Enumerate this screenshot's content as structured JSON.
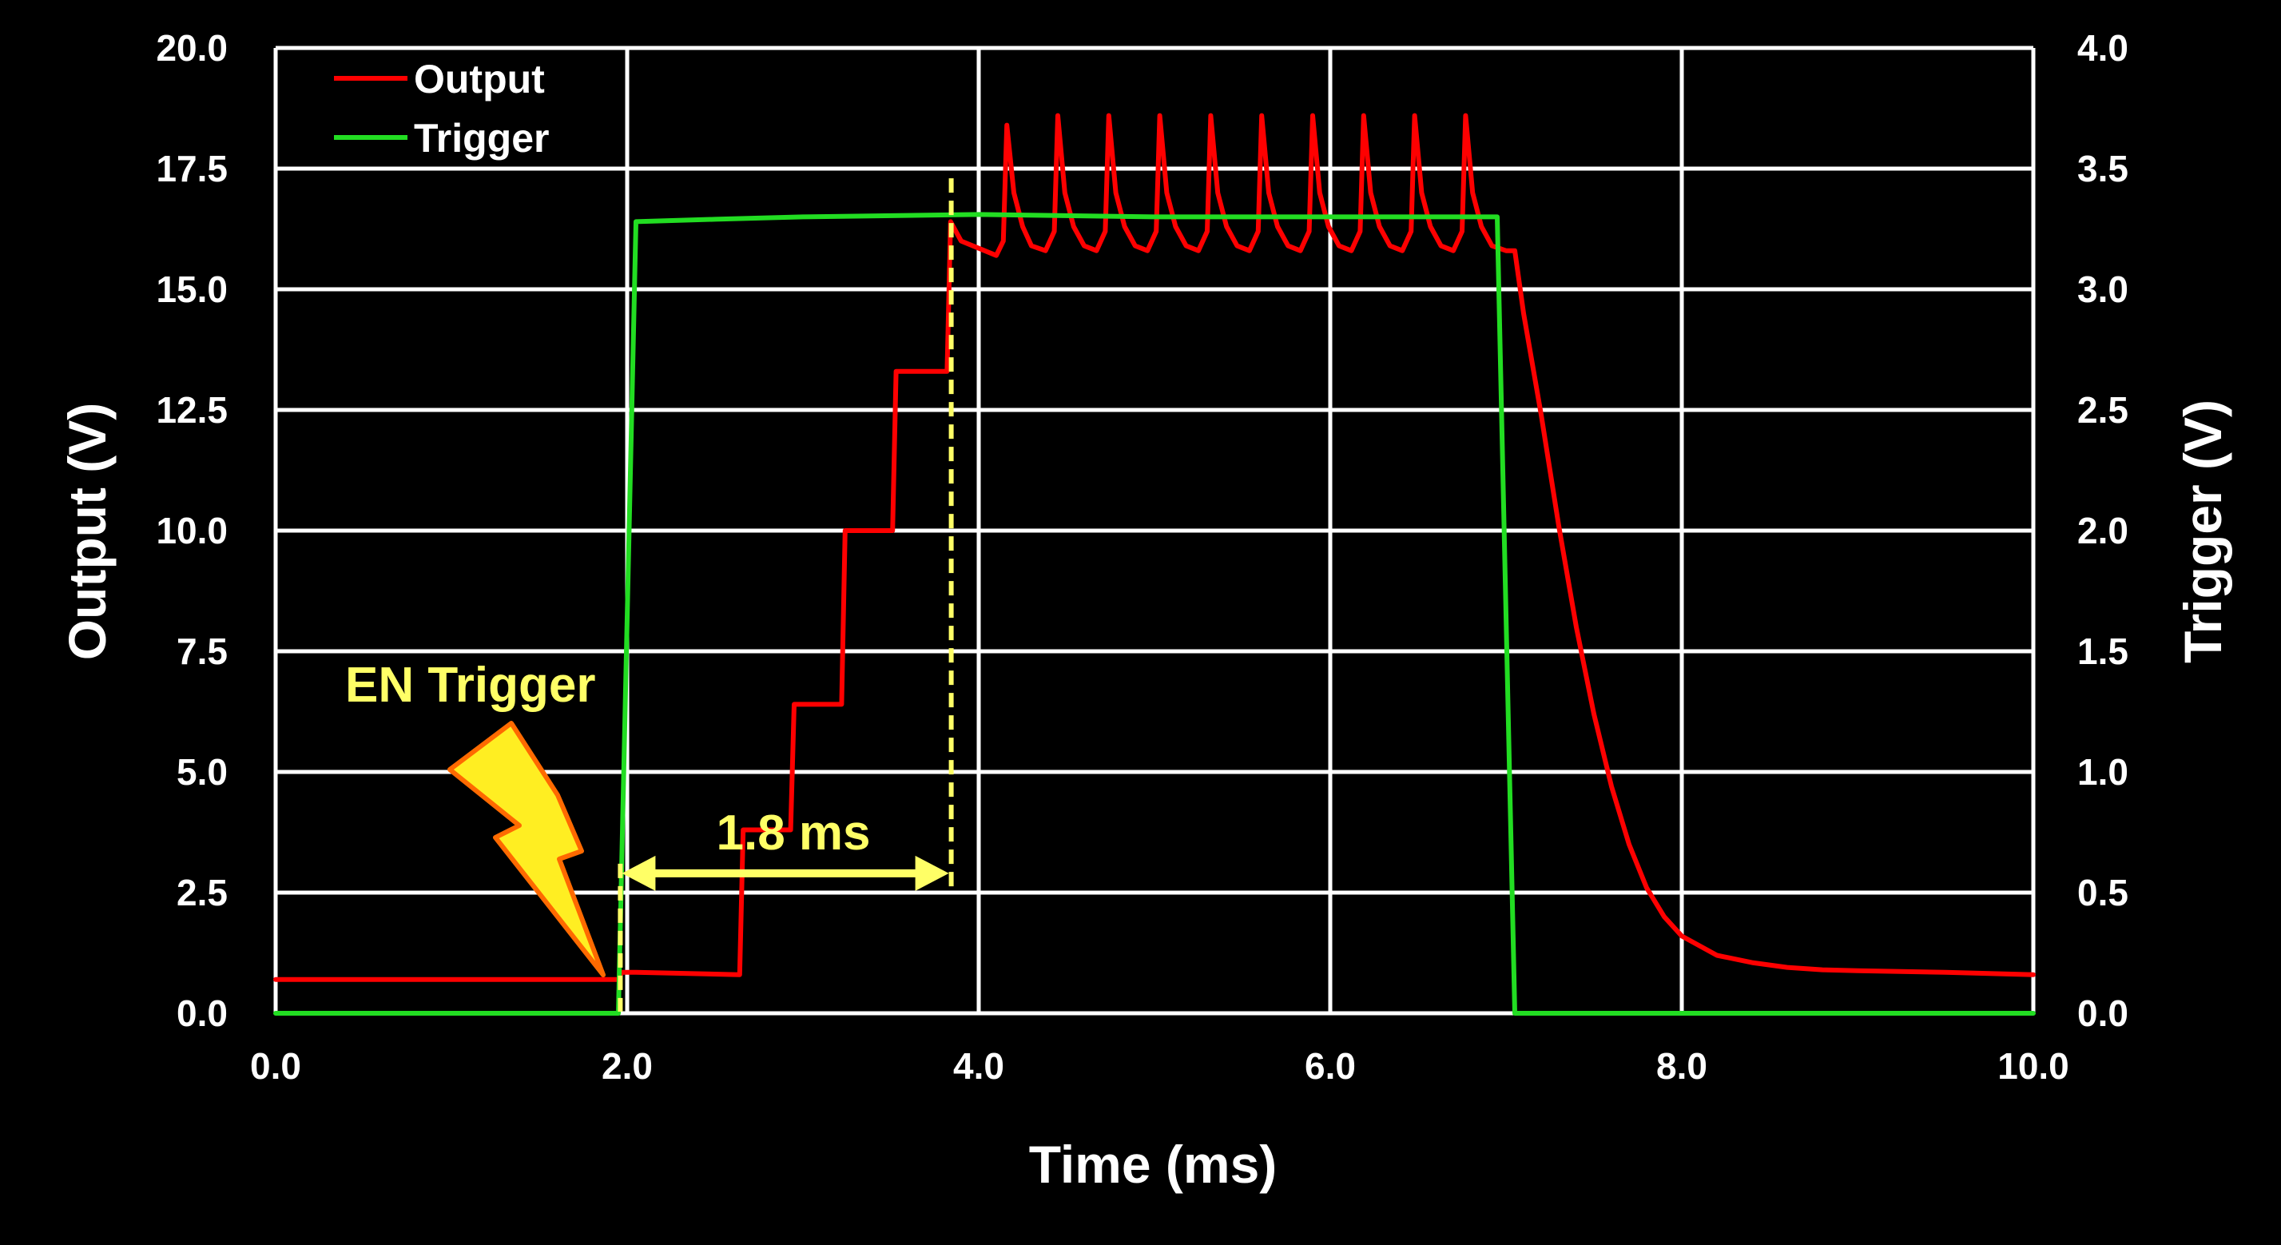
{
  "chart_data": {
    "type": "line",
    "xlabel": "Time (ms)",
    "ylabel_left": "Output (V)",
    "ylabel_right": "Trigger (V)",
    "xlim": [
      0,
      10
    ],
    "ylim_left": [
      0,
      20
    ],
    "ylim_right": [
      0,
      4
    ],
    "x_ticks": [
      "0.0",
      "2.0",
      "4.0",
      "6.0",
      "8.0",
      "10.0"
    ],
    "y_left_ticks": [
      "0.0",
      "2.5",
      "5.0",
      "7.5",
      "10.0",
      "12.5",
      "15.0",
      "17.5",
      "20.0"
    ],
    "y_right_ticks": [
      "0.0",
      "0.5",
      "1.0",
      "1.5",
      "2.0",
      "2.5",
      "3.0",
      "3.5",
      "4.0"
    ],
    "grid": true,
    "legend_position": "top-left",
    "colors": {
      "background": "#000000",
      "grid": "#ffffff",
      "output": "#ff0000",
      "trigger": "#22dd22",
      "annotation": "#ffff66",
      "bolt_fill": "#ffee22",
      "bolt_stroke": "#ff6a00"
    },
    "series": [
      {
        "name": "Output",
        "axis": "left",
        "x": [
          0.0,
          1.95,
          1.97,
          2.05,
          2.64,
          2.66,
          2.93,
          2.95,
          3.22,
          3.24,
          3.51,
          3.53,
          3.82,
          3.84,
          3.9,
          4.1,
          4.14,
          4.16,
          4.2,
          4.25,
          4.3,
          4.38,
          4.43,
          4.45,
          4.49,
          4.54,
          4.6,
          4.67,
          4.72,
          4.74,
          4.78,
          4.83,
          4.89,
          4.96,
          5.01,
          5.03,
          5.07,
          5.12,
          5.18,
          5.25,
          5.3,
          5.32,
          5.36,
          5.41,
          5.47,
          5.54,
          5.59,
          5.61,
          5.65,
          5.7,
          5.76,
          5.83,
          5.88,
          5.9,
          5.94,
          5.99,
          6.05,
          6.12,
          6.17,
          6.19,
          6.23,
          6.28,
          6.34,
          6.41,
          6.46,
          6.48,
          6.52,
          6.57,
          6.63,
          6.7,
          6.75,
          6.77,
          6.81,
          6.86,
          6.92,
          7.0,
          7.05,
          7.1,
          7.2,
          7.3,
          7.4,
          7.5,
          7.6,
          7.7,
          7.8,
          7.9,
          8.0,
          8.2,
          8.4,
          8.6,
          8.8,
          9.0,
          9.5,
          10.0
        ],
        "values": [
          0.7,
          0.7,
          0.85,
          0.85,
          0.8,
          3.8,
          3.8,
          6.4,
          6.4,
          10.0,
          10.0,
          13.3,
          13.3,
          16.4,
          16.0,
          15.7,
          16.0,
          18.4,
          17.0,
          16.3,
          15.9,
          15.8,
          16.2,
          18.6,
          17.0,
          16.3,
          15.9,
          15.8,
          16.2,
          18.6,
          17.0,
          16.3,
          15.9,
          15.8,
          16.2,
          18.6,
          17.0,
          16.3,
          15.9,
          15.8,
          16.2,
          18.6,
          17.0,
          16.3,
          15.9,
          15.8,
          16.2,
          18.6,
          17.0,
          16.3,
          15.9,
          15.8,
          16.2,
          18.6,
          17.0,
          16.3,
          15.9,
          15.8,
          16.2,
          18.6,
          17.0,
          16.3,
          15.9,
          15.8,
          16.2,
          18.6,
          17.0,
          16.3,
          15.9,
          15.8,
          16.2,
          18.6,
          17.0,
          16.3,
          15.9,
          15.8,
          15.8,
          14.5,
          12.4,
          10.1,
          8.0,
          6.2,
          4.7,
          3.5,
          2.6,
          2.0,
          1.6,
          1.2,
          1.05,
          0.95,
          0.9,
          0.88,
          0.85,
          0.8
        ]
      },
      {
        "name": "Trigger",
        "axis": "right",
        "x": [
          0.0,
          1.95,
          2.05,
          2.5,
          3.0,
          4.0,
          5.0,
          6.0,
          6.95,
          7.05,
          7.5,
          10.0
        ],
        "values": [
          0.0,
          0.0,
          3.28,
          3.29,
          3.3,
          3.31,
          3.3,
          3.3,
          3.3,
          0.0,
          0.0,
          0.0
        ]
      }
    ],
    "annotations": {
      "trigger_label": "EN Trigger",
      "delay_label": "1.8 ms",
      "delay_start": 1.97,
      "delay_end": 3.83,
      "delay_arrow_y": 2.9,
      "dashed_line_top": 17.3
    }
  }
}
